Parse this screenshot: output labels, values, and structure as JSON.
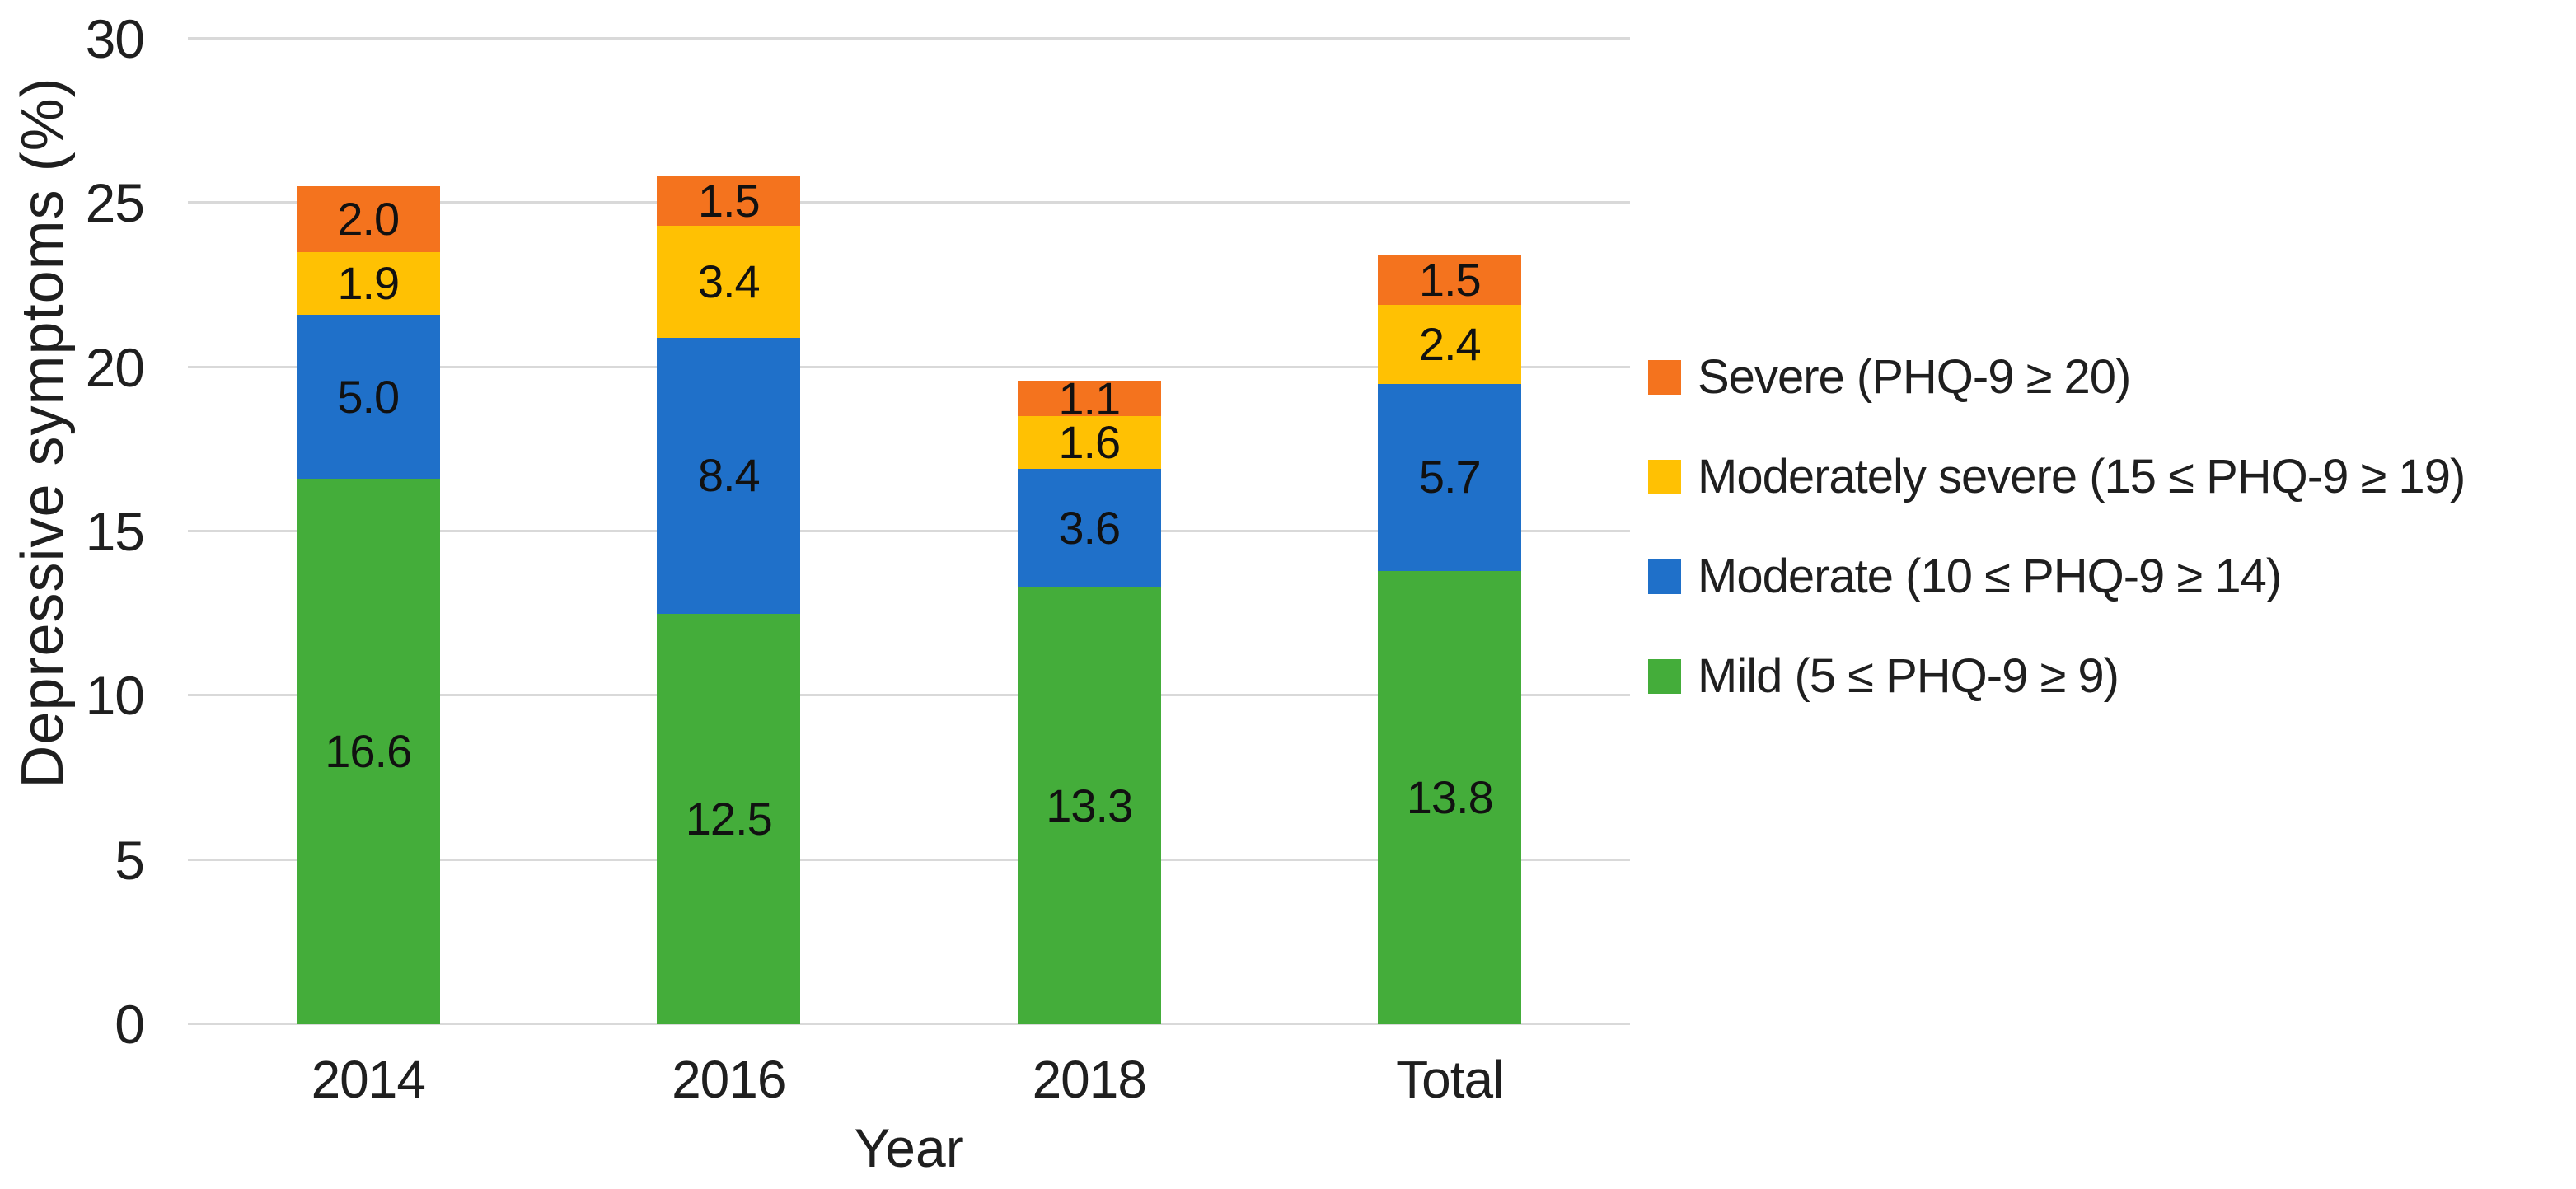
{
  "chart_data": {
    "type": "bar",
    "stacked": true,
    "title": "",
    "xlabel": "Year",
    "ylabel": "Depressive symptoms (%)",
    "ylim": [
      0,
      30
    ],
    "yticks": [
      "0",
      "5",
      "10",
      "15",
      "20",
      "25",
      "30"
    ],
    "grid": true,
    "legend_position": "right",
    "legend_order_top_to_bottom": [
      "Severe (PHQ-9 ≥ 20)",
      "Moderately severe (15 ≤ PHQ-9 ≥ 19)",
      "Moderate (10 ≤ PHQ-9 ≥ 14)",
      "Mild (5 ≤ PHQ-9 ≥ 9)"
    ],
    "categories": [
      "2014",
      "2016",
      "2018",
      "Total"
    ],
    "series": [
      {
        "name": "Mild (5 ≤ PHQ-9 ≥ 9)",
        "color": "#44ad3a",
        "values": [
          16.6,
          12.5,
          13.3,
          13.8
        ],
        "labels": [
          "16.6",
          "12.5",
          "13.3",
          "13.8"
        ]
      },
      {
        "name": "Moderate (10 ≤ PHQ-9 ≥ 14)",
        "color": "#1f70c9",
        "values": [
          5.0,
          8.4,
          3.6,
          5.7
        ],
        "labels": [
          "5.0",
          "8.4",
          "3.6",
          "5.7"
        ]
      },
      {
        "name": "Moderately severe (15 ≤ PHQ-9 ≥ 19)",
        "color": "#ffc103",
        "values": [
          1.9,
          3.4,
          1.6,
          2.4
        ],
        "labels": [
          "1.9",
          "3.4",
          "1.6",
          "2.4"
        ]
      },
      {
        "name": "Severe (PHQ-9 ≥ 20)",
        "color": "#f4731e",
        "values": [
          2.0,
          1.5,
          1.1,
          1.5
        ],
        "labels": [
          "2.0",
          "1.5",
          "1.1",
          "1.5"
        ]
      }
    ],
    "colors": {
      "gridline": "#d9d9d9",
      "text": "#1f1f1f"
    }
  }
}
